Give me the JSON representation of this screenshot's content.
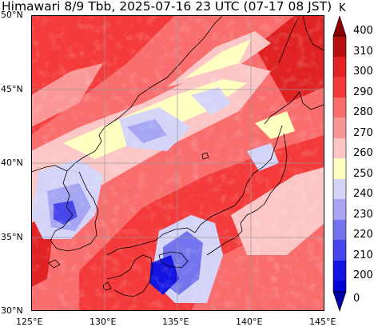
{
  "title": "Himawari 8/9 Tbb, 2025-07-16 23 UTC (07-17 08 JST)",
  "map": {
    "lon_range": [
      125,
      145
    ],
    "lat_range": [
      30,
      50
    ],
    "lon_ticks": [
      "125°E",
      "130°E",
      "135°E",
      "140°E",
      "145°E"
    ],
    "lat_ticks": [
      "30°N",
      "35°N",
      "40°N",
      "45°N",
      "50°N"
    ],
    "grid": true
  },
  "colorbar": {
    "unit": "K",
    "labels": [
      "400",
      "310",
      "300",
      "290",
      "280",
      "270",
      "260",
      "250",
      "240",
      "230",
      "220",
      "210",
      "200",
      "0"
    ],
    "colors": [
      "#8b0000",
      "#b61010",
      "#e02222",
      "#f43a3a",
      "#f96d6d",
      "#fb9696",
      "#fcc6c6",
      "#ffffc0",
      "#d4d4f8",
      "#a5a5f3",
      "#7474ee",
      "#4646ea",
      "#1414e2",
      "#0000a0"
    ],
    "extend": "both"
  }
}
